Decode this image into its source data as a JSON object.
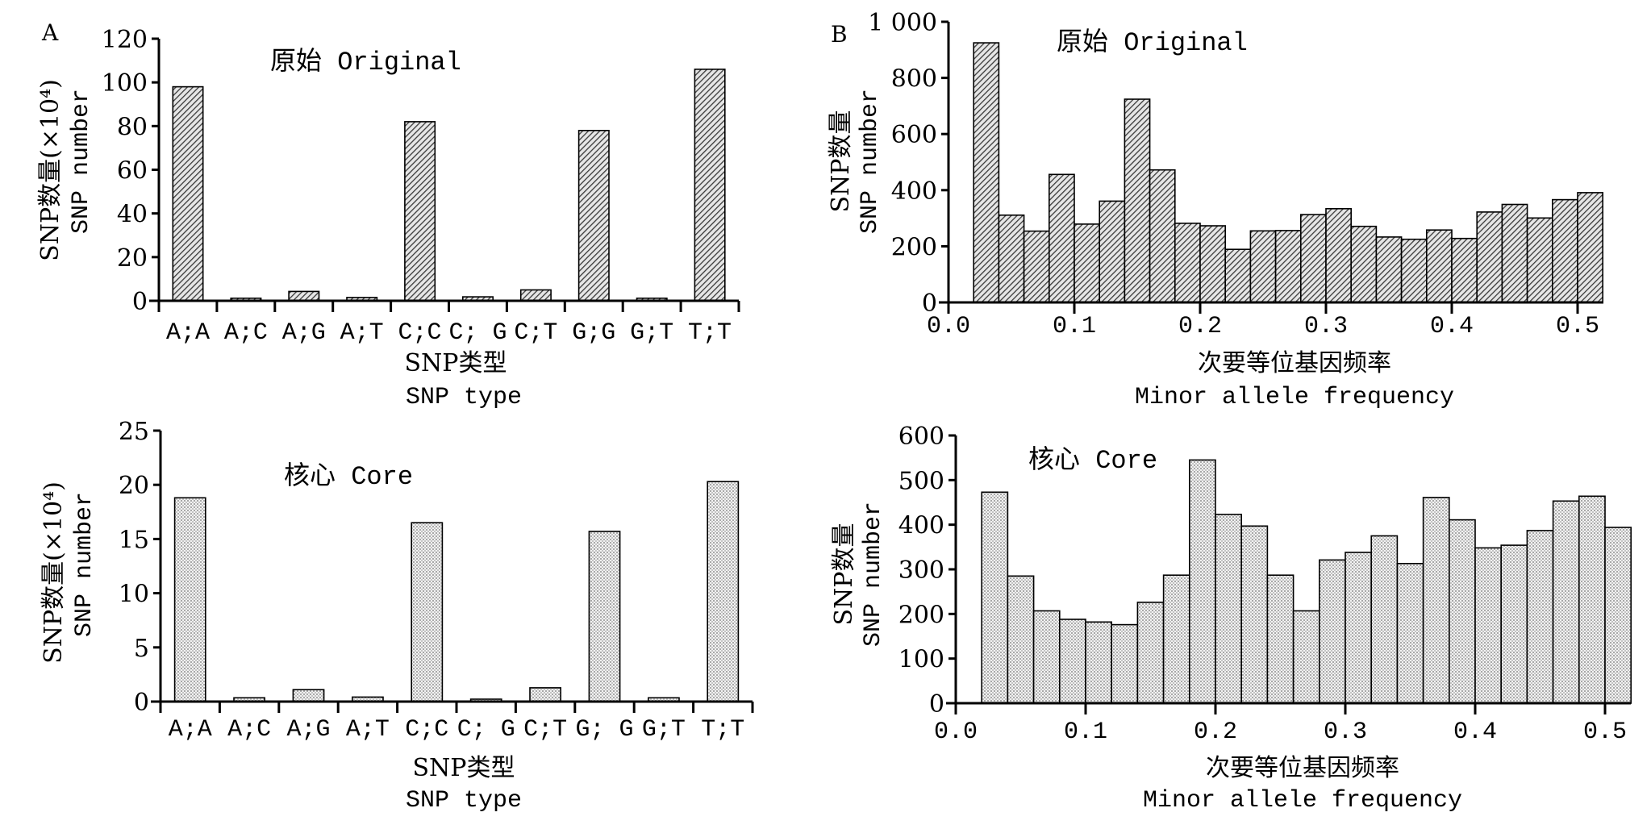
{
  "panels": [
    {
      "label": "A"
    },
    {
      "label": "B"
    }
  ],
  "chart_data": [
    {
      "id": "a-original",
      "panel": "A",
      "type": "bar",
      "title": "原始 Original",
      "xlabel": "SNP类型",
      "xlabel_en": "SNP type",
      "ylabel": "SNP数量(×10⁴)",
      "ylabel_en": "SNP number",
      "categories": [
        "A;A",
        "A;C",
        "A;G",
        "A;T",
        "C;C",
        "C; G",
        "C;T",
        "G;G",
        "G;T",
        "T;T"
      ],
      "values": [
        98,
        1.2,
        4.3,
        1.5,
        82,
        1.8,
        5.0,
        78,
        1.2,
        106
      ],
      "ylim": [
        0,
        120
      ],
      "yticks": [
        0,
        20,
        40,
        60,
        80,
        100,
        120
      ],
      "ytick_labels": [
        "0",
        "20",
        "40",
        "60",
        "80",
        "100",
        "120"
      ],
      "fill": "hatch",
      "fill_color": "#6a6a6a"
    },
    {
      "id": "b-original",
      "panel": "B",
      "type": "bar",
      "title": "原始 Original",
      "xlabel": "次要等位基因频率",
      "xlabel_en": "Minor allele frequency",
      "ylabel": "SNP数量",
      "ylabel_en": "SNP number",
      "bin_start": 0.02,
      "bin_width": 0.02,
      "values": [
        925,
        311,
        254,
        456,
        279,
        361,
        724,
        472,
        282,
        273,
        189,
        255,
        256,
        313,
        334,
        271,
        233,
        225,
        258,
        228,
        322,
        349,
        301,
        366,
        391
      ],
      "xlim": [
        0,
        0.52
      ],
      "xticks": [
        0.0,
        0.1,
        0.2,
        0.3,
        0.4,
        0.5
      ],
      "xtick_labels": [
        "0.0",
        "0.1",
        "0.2",
        "0.3",
        "0.4",
        "0.5"
      ],
      "ylim": [
        0,
        1000
      ],
      "yticks": [
        0,
        200,
        400,
        600,
        800,
        1000
      ],
      "ytick_labels": [
        "0",
        "200",
        "400",
        "600",
        "800",
        "1 000"
      ],
      "fill": "hatch",
      "fill_color": "#6a6a6a"
    },
    {
      "id": "a-core",
      "panel": "A",
      "type": "bar",
      "title": "核心 Core",
      "xlabel": "SNP类型",
      "xlabel_en": "SNP type",
      "ylabel": "SNP数量(×10⁴)",
      "ylabel_en": "SNP number",
      "categories": [
        "A;A",
        "A;C",
        "A;G",
        "A;T",
        "C;C",
        "C; G",
        "C;T",
        "G; G",
        "G;T",
        "T;T"
      ],
      "values": [
        18.8,
        0.35,
        1.1,
        0.42,
        16.5,
        0.22,
        1.27,
        15.7,
        0.35,
        20.3
      ],
      "ylim": [
        0,
        25
      ],
      "yticks": [
        0,
        5,
        10,
        15,
        20,
        25
      ],
      "ytick_labels": [
        "0",
        "5",
        "10",
        "15",
        "20",
        "25"
      ],
      "fill": "dots",
      "fill_color": "#d8d8d8"
    },
    {
      "id": "b-core",
      "panel": "B",
      "type": "bar",
      "title": "核心 Core",
      "xlabel": "次要等位基因频率",
      "xlabel_en": "Minor allele frequency",
      "ylabel": "SNP数量",
      "ylabel_en": "SNP number",
      "bin_start": 0.02,
      "bin_width": 0.02,
      "values": [
        473,
        285,
        207,
        188,
        182,
        176,
        226,
        287,
        545,
        423,
        397,
        287,
        207,
        321,
        338,
        375,
        313,
        461,
        411,
        348,
        354,
        387,
        453,
        464,
        394
      ],
      "xlim": [
        0,
        0.52
      ],
      "xticks": [
        0.0,
        0.1,
        0.2,
        0.3,
        0.4,
        0.5
      ],
      "xtick_labels": [
        "0.0",
        "0.1",
        "0.2",
        "0.3",
        "0.4",
        "0.5"
      ],
      "ylim": [
        0,
        600
      ],
      "yticks": [
        0,
        100,
        200,
        300,
        400,
        500,
        600
      ],
      "ytick_labels": [
        "0",
        "100",
        "200",
        "300",
        "400",
        "500",
        "600"
      ],
      "fill": "dots",
      "fill_color": "#d8d8d8"
    }
  ]
}
